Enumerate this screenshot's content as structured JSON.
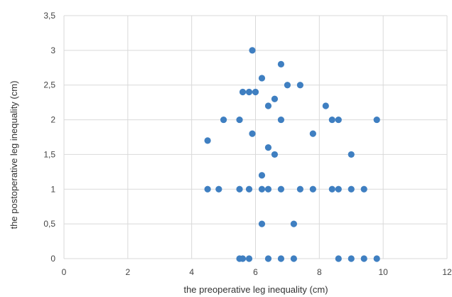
{
  "chart_data": {
    "type": "scatter",
    "title": "",
    "xlabel": "the preoperative leg inequality (cm)",
    "ylabel": "the postoperative leg inequality (cm)",
    "xlim": [
      0,
      12
    ],
    "ylim": [
      0,
      3.5
    ],
    "x_ticks": [
      0,
      2,
      4,
      6,
      8,
      10,
      12
    ],
    "y_ticks": [
      0,
      0.5,
      1,
      1.5,
      2,
      2.5,
      3,
      3.5
    ],
    "x_tick_labels": [
      "0",
      "2",
      "4",
      "6",
      "8",
      "10",
      "12"
    ],
    "y_tick_labels": [
      "0",
      "0,5",
      "1",
      "1,5",
      "2",
      "2,5",
      "3",
      "3,5"
    ],
    "grid": true,
    "legend": "none",
    "marker_color": "#3f7fc1",
    "series": [
      {
        "points": [
          [
            5.9,
            3.0
          ],
          [
            6.8,
            2.8
          ],
          [
            6.2,
            2.6
          ],
          [
            5.6,
            2.4
          ],
          [
            5.8,
            2.4
          ],
          [
            6.0,
            2.4
          ],
          [
            7.0,
            2.5
          ],
          [
            7.4,
            2.5
          ],
          [
            6.6,
            2.3
          ],
          [
            6.4,
            2.2
          ],
          [
            8.2,
            2.2
          ],
          [
            5.0,
            2.0
          ],
          [
            5.5,
            2.0
          ],
          [
            6.8,
            2.0
          ],
          [
            8.4,
            2.0
          ],
          [
            8.6,
            2.0
          ],
          [
            9.8,
            2.0
          ],
          [
            5.9,
            1.8
          ],
          [
            7.8,
            1.8
          ],
          [
            4.5,
            1.7
          ],
          [
            6.4,
            1.6
          ],
          [
            6.6,
            1.5
          ],
          [
            9.0,
            1.5
          ],
          [
            6.2,
            1.2
          ],
          [
            4.5,
            1.0
          ],
          [
            4.85,
            1.0
          ],
          [
            5.5,
            1.0
          ],
          [
            5.8,
            1.0
          ],
          [
            6.2,
            1.0
          ],
          [
            6.4,
            1.0
          ],
          [
            6.8,
            1.0
          ],
          [
            7.4,
            1.0
          ],
          [
            7.8,
            1.0
          ],
          [
            8.4,
            1.0
          ],
          [
            8.6,
            1.0
          ],
          [
            9.0,
            1.0
          ],
          [
            9.4,
            1.0
          ],
          [
            6.2,
            0.5
          ],
          [
            7.2,
            0.5
          ],
          [
            5.5,
            0.0
          ],
          [
            5.6,
            0.0
          ],
          [
            5.8,
            0.0
          ],
          [
            6.4,
            0.0
          ],
          [
            6.8,
            0.0
          ],
          [
            7.2,
            0.0
          ],
          [
            8.6,
            0.0
          ],
          [
            9.0,
            0.0
          ],
          [
            9.4,
            0.0
          ],
          [
            9.8,
            0.0
          ]
        ]
      }
    ]
  }
}
